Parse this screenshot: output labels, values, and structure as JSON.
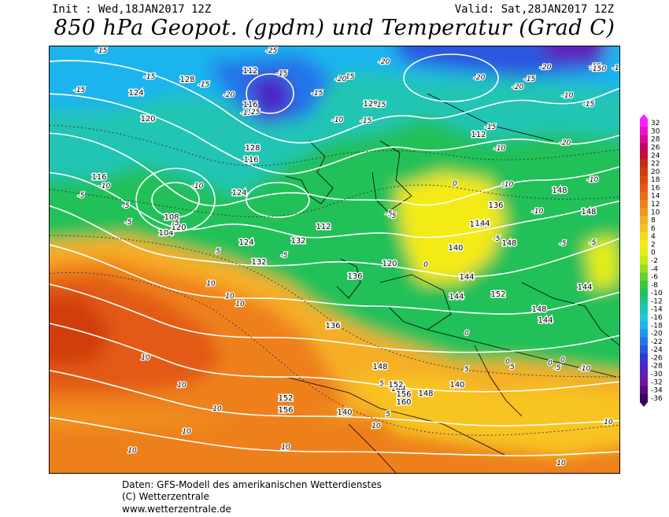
{
  "header": {
    "init": "Init : Wed,18JAN2017 12Z",
    "valid": "Valid: Sat,28JAN2017 12Z",
    "title": "850 hPa Geopot. (gpdm) und Temperatur (Grad C)"
  },
  "legend": {
    "labels": [
      "32",
      "30",
      "28",
      "26",
      "24",
      "22",
      "20",
      "18",
      "16",
      "14",
      "12",
      "10",
      "8",
      "6",
      "4",
      "2",
      "0",
      "-2",
      "-4",
      "-6",
      "-8",
      "-10",
      "-12",
      "-14",
      "-16",
      "-18",
      "-20",
      "-22",
      "-24",
      "-26",
      "-28",
      "-30",
      "-32",
      "-34",
      "-36"
    ],
    "colors": [
      "#ff20ff",
      "#ee10d0",
      "#d8089a",
      "#c8006e",
      "#c21030",
      "#c82a18",
      "#d23c10",
      "#dc4a10",
      "#e25a14",
      "#e86c18",
      "#ee801c",
      "#f29624",
      "#f6ae28",
      "#f8c420",
      "#f8d81c",
      "#f4ea14",
      "#e6ee10",
      "#c2ea14",
      "#92e020",
      "#64d42c",
      "#38c838",
      "#22c058",
      "#22c28a",
      "#22c4b4",
      "#22c8d8",
      "#1eb4ee",
      "#1e98f0",
      "#2276ea",
      "#2a56e0",
      "#3438d2",
      "#4a28c6",
      "#5e1eb8",
      "#6e16a4",
      "#560c80",
      "#3c0458"
    ]
  },
  "map": {
    "geopotential_labels": [
      "124",
      "128",
      "112",
      "116",
      "120",
      "128",
      "132",
      "136",
      "140",
      "144",
      "148",
      "152",
      "156",
      "160",
      "104",
      "108",
      "132",
      "124",
      "140",
      "148",
      "120",
      "144",
      "152",
      "156",
      "136",
      "112",
      "116",
      "124",
      "120",
      "112",
      "128",
      "116",
      "140",
      "152",
      "136",
      "148",
      "140",
      "144",
      "144",
      "148",
      "148",
      "148",
      "144",
      "144"
    ],
    "temperature_labels": [
      "-15",
      "-15",
      "-15",
      "-15",
      "-15",
      "-20",
      "-20",
      "-20",
      "-25",
      "-20",
      "-15",
      "-15",
      "-15",
      "-10",
      "-15",
      "-20",
      "-15",
      "-10",
      "-10",
      "-10",
      "-10",
      "-15",
      "-10",
      "-10",
      "-5",
      "-5",
      "-5",
      "-5",
      "-10",
      "-5",
      "-5",
      "-5",
      "-5",
      "0",
      "0",
      "0",
      "0",
      "0",
      "5",
      "5",
      "5",
      "5",
      "5",
      "10",
      "10",
      "10",
      "10",
      "10",
      "10",
      "10",
      "10",
      "10",
      "10",
      "10",
      "10",
      "-10",
      "-5",
      "-15",
      "-15",
      "-15",
      "-20",
      "-25",
      "-15",
      "-20",
      "-10",
      "-5",
      "0",
      "0",
      "-5",
      "-15"
    ]
  },
  "footer": {
    "line1": "Daten: GFS-Modell des amerikanischen Wetterdienstes",
    "line2": "(C) Wetterzentrale",
    "line3": "www.wetterzentrale.de"
  }
}
